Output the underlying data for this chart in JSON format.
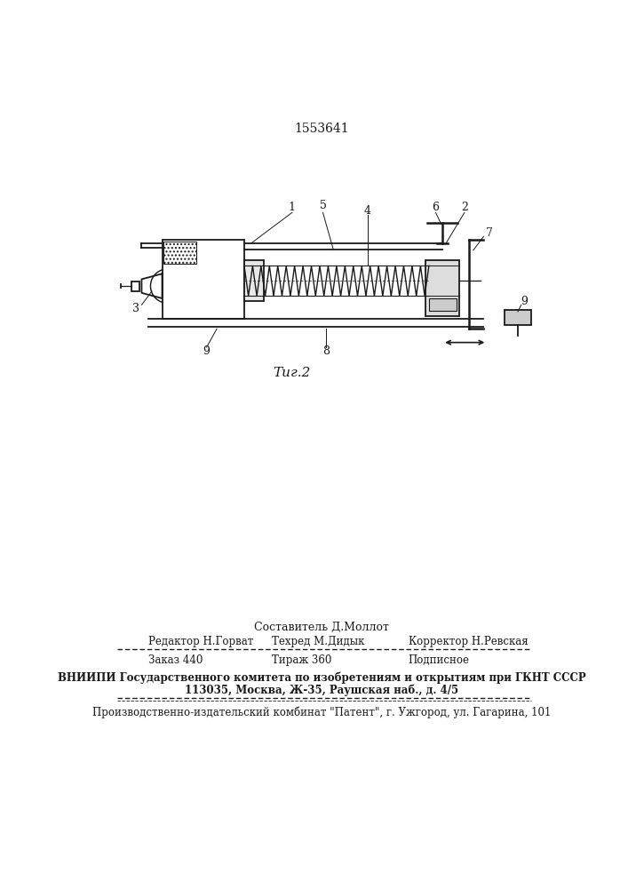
{
  "patent_number": "1553641",
  "figure_label": "Τиг.2",
  "background_color": "#ffffff",
  "line_color": "#1a1a1a",
  "text_color": "#1a1a1a",
  "footer": {
    "compiler": "Составитель Д.Моллот",
    "editor": "Редактор Н.Горват",
    "techred": "Техред М.Дидык",
    "corrector": "Корректор Н.Ревская",
    "order": "Заказ 440",
    "circulation": "Тираж 360",
    "subscription": "Подписное",
    "vniigi_line1": "ВНИИПИ Государственного комитета по изобретениям и открытиям при ГКНТ СССР",
    "vniigi_line2": "113035, Москва, Ж-35, Раушская наб., д. 4/5",
    "production": "Производственно-издательский комбинат \"Патент\", г. Ужгород, ул. Гагарина, 101"
  }
}
